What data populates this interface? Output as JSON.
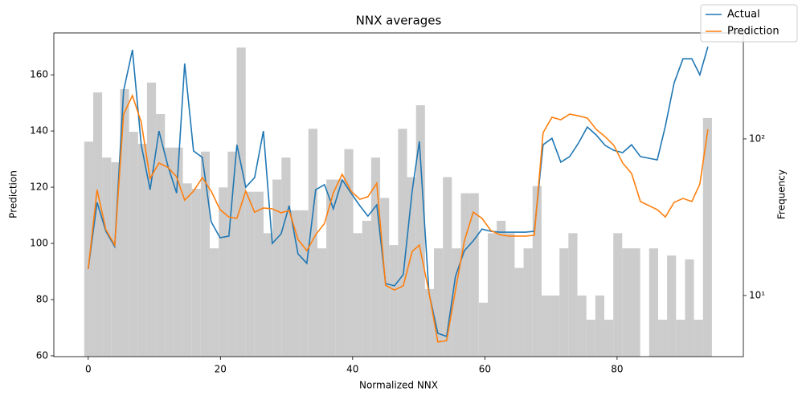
{
  "chart_data": {
    "type": "line",
    "title": "NNX averages",
    "xlabel": "Normalized NNX",
    "ylabel": "Prediction",
    "y2label": "Frequency",
    "x": [
      0,
      1.34,
      2.67,
      4.01,
      5.35,
      6.69,
      8.02,
      9.36,
      10.7,
      12.04,
      13.37,
      14.59,
      15.93,
      17.26,
      18.6,
      19.94,
      21.28,
      22.49,
      23.83,
      25.17,
      26.5,
      27.84,
      29.18,
      30.4,
      31.73,
      33.07,
      34.41,
      35.74,
      37.08,
      38.42,
      39.76,
      41.09,
      42.31,
      43.65,
      44.98,
      46.32,
      47.66,
      49,
      50.09,
      51.55,
      52.89,
      54.22,
      55.56,
      56.9,
      58.24,
      59.57,
      60.91,
      62.25,
      63.59,
      64.8,
      66.14,
      67.48,
      68.81,
      70.15,
      71.49,
      72.83,
      74.16,
      75.5,
      76.84,
      78.18,
      79.51,
      80.85,
      82.19,
      83.53,
      86.08,
      87.3,
      88.63,
      89.97,
      91.31,
      92.52,
      93.74
    ],
    "series": [
      {
        "name": "Actual",
        "color": "#1f77b4",
        "values": [
          90.9,
          114.6,
          104.3,
          98.9,
          154.3,
          168.9,
          135.1,
          119.1,
          140,
          127.7,
          117.9,
          164,
          132.9,
          130.6,
          107.7,
          102,
          102.6,
          135.1,
          120,
          123.4,
          140,
          100,
          103.4,
          113.4,
          96.3,
          92.9,
          119.1,
          120.9,
          112.3,
          122.6,
          117.9,
          113.4,
          109.7,
          113.7,
          85.7,
          84.9,
          88.9,
          118.6,
          136.3,
          82.3,
          68,
          66.9,
          88.3,
          97.4,
          100.9,
          105.1,
          104.3,
          104,
          104,
          104,
          104,
          104.3,
          135.1,
          137.4,
          128.9,
          130.9,
          135.7,
          141.4,
          138.6,
          134.9,
          133.1,
          132.3,
          135.1,
          130.9,
          129.7,
          141.7,
          157.1,
          165.7,
          165.7,
          160,
          170
        ]
      },
      {
        "name": "Prediction",
        "color": "#ff7f0e",
        "values": [
          90.9,
          119.1,
          104.9,
          99.4,
          146,
          152.6,
          143.1,
          123.1,
          128.6,
          127.1,
          123.7,
          115.4,
          118.6,
          123.4,
          118.6,
          112,
          109.4,
          108.9,
          118.6,
          111.1,
          112.6,
          112.3,
          110.9,
          111.7,
          101.4,
          97.4,
          103.1,
          107.1,
          118,
          124.6,
          118.6,
          115.7,
          116.6,
          121.4,
          85.1,
          83.4,
          84.9,
          97.1,
          99.4,
          82.6,
          64.9,
          65.4,
          83.4,
          100.9,
          111.1,
          108.9,
          104.6,
          103.1,
          102.6,
          102.6,
          102.6,
          102.9,
          139.4,
          144.9,
          144,
          146,
          145.4,
          144.6,
          140.6,
          138,
          134.9,
          128.6,
          124.9,
          114.9,
          112,
          109.4,
          114.6,
          116,
          114.9,
          121.1,
          140.6
        ]
      }
    ],
    "histogram": {
      "type": "histogram",
      "axis": "y2",
      "color": "#cccccc",
      "bins": [
        -0.6,
        0.76,
        2.11,
        3.47,
        4.83,
        6.18,
        7.54,
        8.89,
        10.25,
        11.61,
        12.96,
        14.32,
        15.68,
        17.03,
        18.39,
        19.75,
        21.1,
        22.46,
        23.82,
        25.17,
        26.53,
        27.88,
        29.24,
        30.6,
        31.95,
        33.31,
        34.67,
        36.02,
        37.38,
        38.74,
        40.09,
        41.45,
        42.8,
        44.16,
        45.52,
        46.87,
        48.23,
        49.59,
        50.94,
        52.3,
        53.66,
        55.01,
        56.37,
        57.72,
        59.08,
        60.44,
        61.79,
        63.15,
        64.51,
        65.86,
        67.22,
        68.58,
        69.93,
        71.29,
        72.64,
        74,
        75.36,
        76.71,
        78.07,
        79.43,
        80.78,
        82.14,
        83.5,
        84.85,
        86.21,
        87.56,
        88.92,
        90.28,
        91.63,
        92.99,
        94.35
      ],
      "counts": [
        96,
        198,
        76,
        71,
        208,
        111,
        93,
        229,
        144,
        88,
        88,
        52,
        48,
        83,
        20,
        49,
        83,
        383,
        46,
        46,
        25,
        55,
        76,
        35,
        35,
        116,
        20,
        55,
        55,
        86,
        25,
        30,
        76,
        42,
        21,
        116,
        57,
        164,
        11,
        20,
        57,
        20,
        45,
        45,
        9,
        25,
        30,
        25,
        15,
        20,
        50,
        10,
        10,
        20,
        25,
        10,
        7,
        10,
        7,
        25,
        20,
        20,
        0,
        20,
        7,
        18,
        7,
        17,
        7,
        136
      ]
    },
    "xlim": [
      -5.2,
      99.1
    ],
    "xticks": [
      0,
      20,
      40,
      60,
      80
    ],
    "ylim": [
      59.7,
      174.9
    ],
    "yticks": [
      60,
      80,
      100,
      120,
      140,
      160
    ],
    "y2lim": [
      4.07,
      475
    ],
    "y2scale": "log",
    "y2ticks": [
      {
        "value": 10,
        "label": "10¹"
      },
      {
        "value": 100,
        "label": "10²"
      }
    ],
    "grid": false,
    "legend": "upper right"
  }
}
